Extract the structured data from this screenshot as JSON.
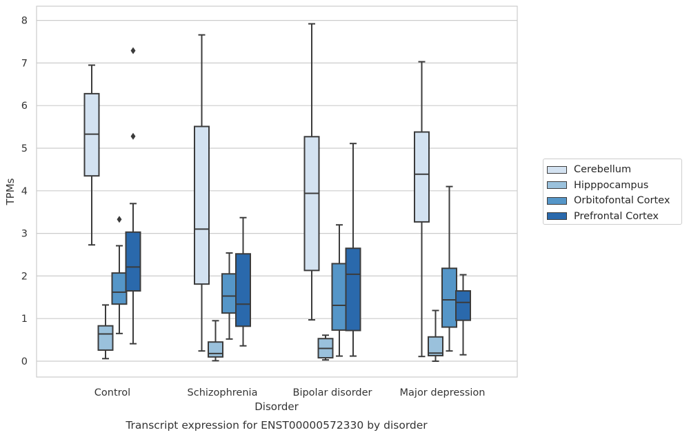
{
  "chart_data": {
    "type": "boxplot",
    "title": "Transcript expression for ENST00000572330 by disorder",
    "xlabel": "Disorder",
    "ylabel": "TPMs",
    "ylim": [
      -0.38,
      8.3
    ],
    "yticks": [
      0,
      1,
      2,
      3,
      4,
      5,
      6,
      7,
      8
    ],
    "grid": "horizontal",
    "legend_position": "right",
    "categories": [
      "Control",
      "Schizophrenia",
      "Bipolar disorder",
      "Major depression"
    ],
    "series": [
      {
        "name": "Cerebellum",
        "color": "#d3e2f1",
        "boxes": [
          {
            "min": 2.73,
            "q1": 4.35,
            "median": 5.33,
            "q3": 6.28,
            "max": 6.95,
            "outliers": []
          },
          {
            "min": 0.24,
            "q1": 1.81,
            "median": 3.1,
            "q3": 5.51,
            "max": 7.66,
            "outliers": []
          },
          {
            "min": 0.97,
            "q1": 2.13,
            "median": 3.94,
            "q3": 5.27,
            "max": 7.92,
            "outliers": []
          },
          {
            "min": 0.11,
            "q1": 3.27,
            "median": 4.39,
            "q3": 5.38,
            "max": 7.03,
            "outliers": []
          }
        ]
      },
      {
        "name": "Hipppocampus",
        "color": "#9ac1dc",
        "boxes": [
          {
            "min": 0.06,
            "q1": 0.26,
            "median": 0.64,
            "q3": 0.83,
            "max": 1.32,
            "outliers": []
          },
          {
            "min": 0.01,
            "q1": 0.1,
            "median": 0.18,
            "q3": 0.45,
            "max": 0.95,
            "outliers": []
          },
          {
            "min": 0.03,
            "q1": 0.08,
            "median": 0.3,
            "q3": 0.53,
            "max": 0.61,
            "outliers": []
          },
          {
            "min": 0.0,
            "q1": 0.13,
            "median": 0.19,
            "q3": 0.57,
            "max": 1.19,
            "outliers": []
          }
        ]
      },
      {
        "name": "Orbitofontal Cortex",
        "color": "#5596c8",
        "boxes": [
          {
            "min": 0.65,
            "q1": 1.34,
            "median": 1.62,
            "q3": 2.07,
            "max": 2.71,
            "outliers": [
              3.33
            ]
          },
          {
            "min": 0.52,
            "q1": 1.13,
            "median": 1.53,
            "q3": 2.05,
            "max": 2.54,
            "outliers": []
          },
          {
            "min": 0.12,
            "q1": 0.73,
            "median": 1.31,
            "q3": 2.29,
            "max": 3.2,
            "outliers": []
          },
          {
            "min": 0.24,
            "q1": 0.8,
            "median": 1.44,
            "q3": 2.18,
            "max": 4.1,
            "outliers": []
          }
        ]
      },
      {
        "name": "Prefrontal Cortex",
        "color": "#2a69ac",
        "boxes": [
          {
            "min": 0.41,
            "q1": 1.65,
            "median": 2.21,
            "q3": 3.03,
            "max": 3.7,
            "outliers": [
              5.28,
              7.29
            ]
          },
          {
            "min": 0.36,
            "q1": 0.82,
            "median": 1.34,
            "q3": 2.52,
            "max": 3.37,
            "outliers": []
          },
          {
            "min": 0.12,
            "q1": 0.72,
            "median": 2.04,
            "q3": 2.65,
            "max": 5.11,
            "outliers": []
          },
          {
            "min": 0.15,
            "q1": 0.96,
            "median": 1.38,
            "q3": 1.65,
            "max": 2.03,
            "outliers": []
          }
        ]
      }
    ]
  }
}
